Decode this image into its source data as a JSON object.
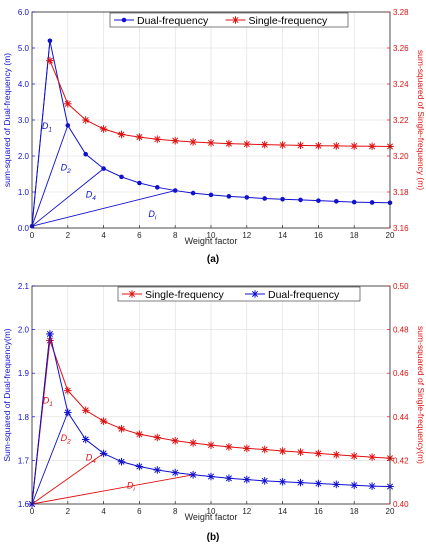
{
  "panels": [
    {
      "caption": "(a)",
      "xlabel": "Weight factor",
      "ylabel_left": "sum-squared of Dual-frequency (m)",
      "ylabel_right": "sum-squared of Single-frequency (m)",
      "xlim": [
        0,
        20
      ],
      "xticks": [
        "0",
        "2",
        "4",
        "6",
        "8",
        "10",
        "12",
        "14",
        "16",
        "18",
        "20"
      ],
      "ylim_left": [
        0.0,
        6.0
      ],
      "yticks_left": [
        "0.0",
        "1.0",
        "2.0",
        "3.0",
        "4.0",
        "5.0",
        "6.0"
      ],
      "ylim_right": [
        3.16,
        3.28
      ],
      "yticks_right": [
        "3.16",
        "3.18",
        "3.20",
        "3.22",
        "3.24",
        "3.26",
        "3.28"
      ],
      "legend": [
        {
          "label": "Dual-frequency",
          "color": "#1010d0",
          "marker": "dot"
        },
        {
          "label": "Single-frequency",
          "color": "#e01010",
          "marker": "star"
        }
      ],
      "annotations": [
        {
          "text": "D1",
          "x": 0.55,
          "y": 2.75
        },
        {
          "text": "D2",
          "x": 1.6,
          "y": 1.6
        },
        {
          "text": "D4",
          "x": 3.0,
          "y": 0.85
        },
        {
          "text": "Di",
          "x": 6.5,
          "y": 0.3
        }
      ]
    },
    {
      "caption": "(b)",
      "xlabel": "Weight factor",
      "ylabel_left": "Sum-squared of Dual-frequency(m)",
      "ylabel_right": "sum-squared of Single-frequency(m)",
      "xlim": [
        0,
        20
      ],
      "xticks": [
        "0",
        "2",
        "4",
        "6",
        "8",
        "10",
        "12",
        "14",
        "16",
        "18",
        "20"
      ],
      "ylim_left": [
        1.6,
        2.1
      ],
      "yticks_left": [
        "1.6",
        "1.7",
        "1.8",
        "1.9",
        "2.0",
        "2.1"
      ],
      "ylim_right": [
        0.4,
        0.5
      ],
      "yticks_right": [
        "0.40",
        "0.42",
        "0.44",
        "0.46",
        "0.48",
        "0.50"
      ],
      "legend": [
        {
          "label": "Single-frequency",
          "color": "#e01010",
          "marker": "star"
        },
        {
          "label": "Dual-frequency",
          "color": "#1010d0",
          "marker": "star"
        }
      ],
      "annotations": [
        {
          "text": "D1",
          "x": 0.6,
          "y": 1.83
        },
        {
          "text": "D2",
          "x": 1.6,
          "y": 1.745
        },
        {
          "text": "D4",
          "x": 3.0,
          "y": 1.7
        },
        {
          "text": "Di",
          "x": 5.3,
          "y": 1.635
        }
      ]
    }
  ],
  "chart_data": [
    {
      "type": "line",
      "title": "",
      "xlabel": "Weight factor",
      "ylabel": "sum-squared of Dual-frequency (m)",
      "ylabel_right": "sum-squared of Single-frequency (m)",
      "xlim": [
        0,
        20
      ],
      "ylim": [
        0.0,
        6.0
      ],
      "ylim_right": [
        3.16,
        3.28
      ],
      "grid": true,
      "legend": "top",
      "x": [
        1,
        2,
        3,
        4,
        5,
        6,
        7,
        8,
        9,
        10,
        11,
        12,
        13,
        14,
        15,
        16,
        17,
        18,
        19,
        20
      ],
      "series": [
        {
          "name": "Dual-frequency",
          "axis": "left",
          "color": "#1010d0",
          "marker": "dot",
          "values": [
            5.2,
            2.85,
            2.05,
            1.65,
            1.42,
            1.25,
            1.13,
            1.04,
            0.97,
            0.92,
            0.88,
            0.85,
            0.82,
            0.8,
            0.78,
            0.76,
            0.74,
            0.72,
            0.71,
            0.7
          ]
        },
        {
          "name": "Single-frequency",
          "axis": "right",
          "color": "#e01010",
          "marker": "star",
          "values": [
            3.253,
            3.229,
            3.22,
            3.215,
            3.212,
            3.2105,
            3.2093,
            3.2085,
            3.2078,
            3.2073,
            3.2069,
            3.2066,
            3.2063,
            3.2061,
            3.2059,
            3.2057,
            3.2056,
            3.2055,
            3.2054,
            3.2053
          ]
        }
      ],
      "rays": [
        {
          "from": [
            0,
            0.05
          ],
          "to": [
            1,
            5.2
          ],
          "label": "D1"
        },
        {
          "from": [
            0,
            0.05
          ],
          "to": [
            2,
            2.85
          ],
          "label": "D2"
        },
        {
          "from": [
            0,
            0.05
          ],
          "to": [
            4,
            1.65
          ],
          "label": "D4"
        },
        {
          "from": [
            0,
            0.05
          ],
          "to": [
            8,
            1.04
          ],
          "label": "Di"
        }
      ]
    },
    {
      "type": "line",
      "title": "",
      "xlabel": "Weight factor",
      "ylabel": "Sum-squared of Dual-frequency(m)",
      "ylabel_right": "sum-squared of Single-frequency(m)",
      "xlim": [
        0,
        20
      ],
      "ylim": [
        1.6,
        2.1
      ],
      "ylim_right": [
        0.4,
        0.5
      ],
      "grid": true,
      "legend": "top",
      "x": [
        1,
        2,
        3,
        4,
        5,
        6,
        7,
        8,
        9,
        10,
        11,
        12,
        13,
        14,
        15,
        16,
        17,
        18,
        19,
        20
      ],
      "series": [
        {
          "name": "Single-frequency",
          "axis": "right",
          "color": "#e01010",
          "marker": "star",
          "values": [
            0.475,
            0.452,
            0.443,
            0.438,
            0.4345,
            0.432,
            0.4305,
            0.429,
            0.428,
            0.427,
            0.4262,
            0.4255,
            0.425,
            0.4243,
            0.4238,
            0.4232,
            0.4226,
            0.422,
            0.4215,
            0.421
          ]
        },
        {
          "name": "Dual-frequency",
          "axis": "left",
          "color": "#1010d0",
          "marker": "star",
          "values": [
            1.99,
            1.81,
            1.748,
            1.716,
            1.697,
            1.686,
            1.678,
            1.672,
            1.667,
            1.663,
            1.659,
            1.656,
            1.653,
            1.651,
            1.649,
            1.647,
            1.645,
            1.643,
            1.641,
            1.64
          ]
        }
      ],
      "rays": [
        {
          "from": [
            0,
            1.6
          ],
          "to": [
            1,
            1.99
          ],
          "label": "D1"
        },
        {
          "from": [
            0,
            1.6
          ],
          "to": [
            2,
            1.81
          ],
          "label": "D2"
        },
        {
          "from": [
            0,
            1.6
          ],
          "to": [
            4,
            1.716
          ],
          "label": "D4"
        },
        {
          "from": [
            0,
            1.6
          ],
          "to": [
            9,
            1.667
          ],
          "label": "Di"
        }
      ]
    }
  ]
}
